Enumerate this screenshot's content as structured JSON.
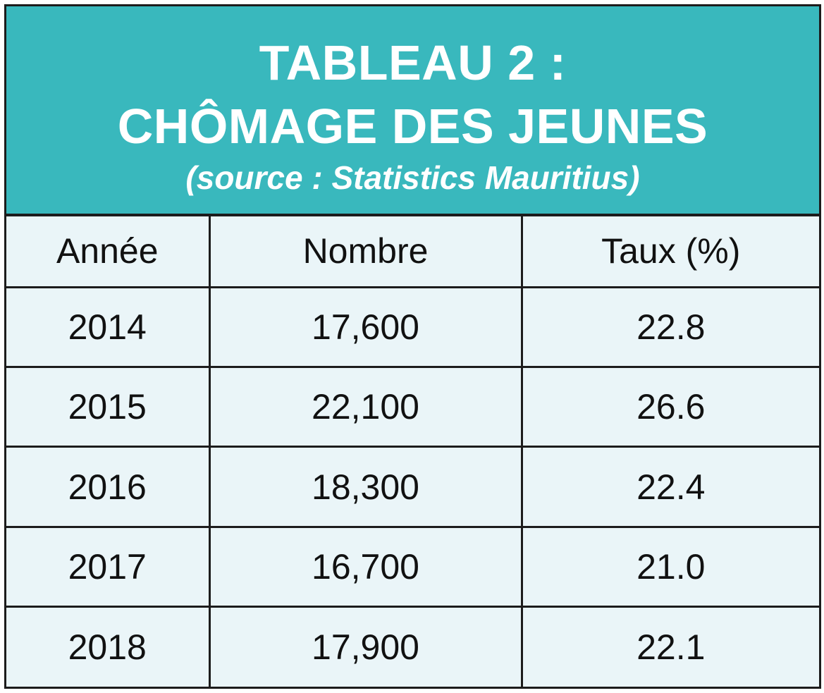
{
  "colors": {
    "header_bg": "#39b8bd",
    "header_text": "#ffffff",
    "table_bg": "#eaf5f8",
    "border": "#1c1c1c",
    "cell_text": "#111111"
  },
  "chart_data": {
    "type": "table",
    "title_line1": "TABLEAU 2 :",
    "title_line2": "CHÔMAGE DES JEUNES",
    "subtitle": "(source : Statistics Mauritius)",
    "columns": [
      "Année",
      "Nombre",
      "Taux (%)"
    ],
    "rows": [
      [
        "2014",
        "17,600",
        "22.8"
      ],
      [
        "2015",
        "22,100",
        "26.6"
      ],
      [
        "2016",
        "18,300",
        "22.4"
      ],
      [
        "2017",
        "16,700",
        "21.0"
      ],
      [
        "2018",
        "17,900",
        "22.1"
      ]
    ]
  }
}
